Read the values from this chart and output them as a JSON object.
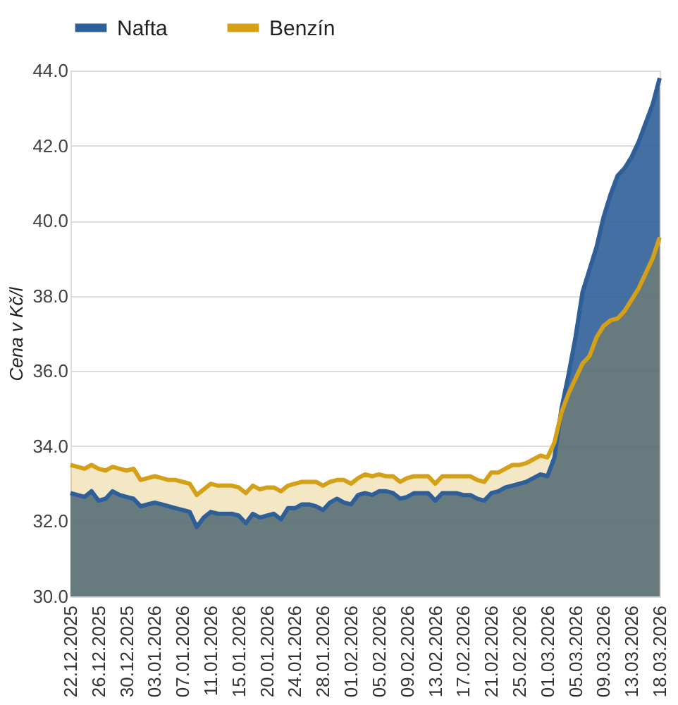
{
  "chart_data": {
    "type": "area",
    "ylabel": "Cena v Kč/l",
    "categories": [
      "22.12.2025",
      null,
      null,
      null,
      "26.12.2025",
      null,
      null,
      null,
      "30.12.2025",
      null,
      null,
      null,
      "03.01.2026",
      null,
      null,
      null,
      "07.01.2026",
      null,
      null,
      null,
      "11.01.2026",
      null,
      null,
      null,
      "15.01.2026",
      null,
      null,
      null,
      "20.01.2026",
      null,
      null,
      null,
      "24.01.2026",
      null,
      null,
      null,
      "28.01.2026",
      null,
      null,
      null,
      "01.02.2026",
      null,
      null,
      null,
      "05.02.2026",
      null,
      null,
      null,
      "09.02.2026",
      null,
      null,
      null,
      "13.02.2026",
      null,
      null,
      null,
      "17.02.2026",
      null,
      null,
      null,
      "21.02.2026",
      null,
      null,
      null,
      "25.02.2026",
      null,
      null,
      null,
      "01.03.2026",
      null,
      null,
      null,
      "05.03.2026",
      null,
      null,
      null,
      "09.03.2026",
      null,
      null,
      null,
      "13.03.2026",
      null,
      null,
      null,
      "18.03.2026"
    ],
    "series": [
      {
        "name": "Nafta",
        "color": "#2f5f98",
        "values": [
          32.75,
          32.7,
          32.65,
          32.8,
          32.55,
          32.6,
          32.8,
          32.7,
          32.65,
          32.6,
          32.4,
          32.45,
          32.5,
          32.45,
          32.4,
          32.35,
          32.3,
          32.25,
          31.85,
          32.1,
          32.25,
          32.2,
          32.2,
          32.2,
          32.15,
          31.95,
          32.2,
          32.1,
          32.15,
          32.2,
          32.05,
          32.35,
          32.35,
          32.45,
          32.45,
          32.4,
          32.3,
          32.5,
          32.6,
          32.5,
          32.45,
          32.7,
          32.75,
          32.7,
          32.8,
          32.8,
          32.75,
          32.6,
          32.65,
          32.75,
          32.75,
          32.75,
          32.55,
          32.75,
          32.75,
          32.75,
          32.7,
          32.7,
          32.6,
          32.55,
          32.75,
          32.8,
          32.9,
          32.95,
          33.0,
          33.05,
          33.15,
          33.25,
          33.2,
          33.7,
          35.0,
          35.9,
          36.9,
          38.1,
          38.7,
          39.3,
          40.1,
          40.7,
          41.2,
          41.4,
          41.7,
          42.1,
          42.6,
          43.1,
          43.8
        ]
      },
      {
        "name": "Benzín",
        "color": "#d4a017",
        "values": [
          33.5,
          33.45,
          33.4,
          33.5,
          33.4,
          33.35,
          33.45,
          33.4,
          33.35,
          33.4,
          33.1,
          33.15,
          33.2,
          33.15,
          33.1,
          33.1,
          33.05,
          33.0,
          32.7,
          32.85,
          33.0,
          32.95,
          32.95,
          32.95,
          32.9,
          32.75,
          32.95,
          32.85,
          32.9,
          32.9,
          32.8,
          32.95,
          33.0,
          33.05,
          33.05,
          33.05,
          32.95,
          33.05,
          33.1,
          33.1,
          33.0,
          33.15,
          33.25,
          33.2,
          33.25,
          33.2,
          33.2,
          33.05,
          33.15,
          33.2,
          33.2,
          33.2,
          33.0,
          33.2,
          33.2,
          33.2,
          33.2,
          33.2,
          33.1,
          33.05,
          33.3,
          33.3,
          33.4,
          33.5,
          33.5,
          33.55,
          33.65,
          33.75,
          33.7,
          34.1,
          34.9,
          35.4,
          35.8,
          36.2,
          36.4,
          36.9,
          37.2,
          37.35,
          37.4,
          37.6,
          37.9,
          38.2,
          38.6,
          39.0,
          39.56
        ]
      }
    ],
    "ylim": [
      30,
      44
    ],
    "yticks": [
      {
        "value": 30,
        "label": "30.0"
      },
      {
        "value": 32,
        "label": "32.0"
      },
      {
        "value": 34,
        "label": "34.0"
      },
      {
        "value": 36,
        "label": "36.0"
      },
      {
        "value": 38,
        "label": "38.0"
      },
      {
        "value": 40,
        "label": "40.0"
      },
      {
        "value": 42,
        "label": "42.0"
      },
      {
        "value": 44,
        "label": "44.0"
      }
    ],
    "grid": "y",
    "legend": "top",
    "marker": "none",
    "line_style": "solid"
  }
}
